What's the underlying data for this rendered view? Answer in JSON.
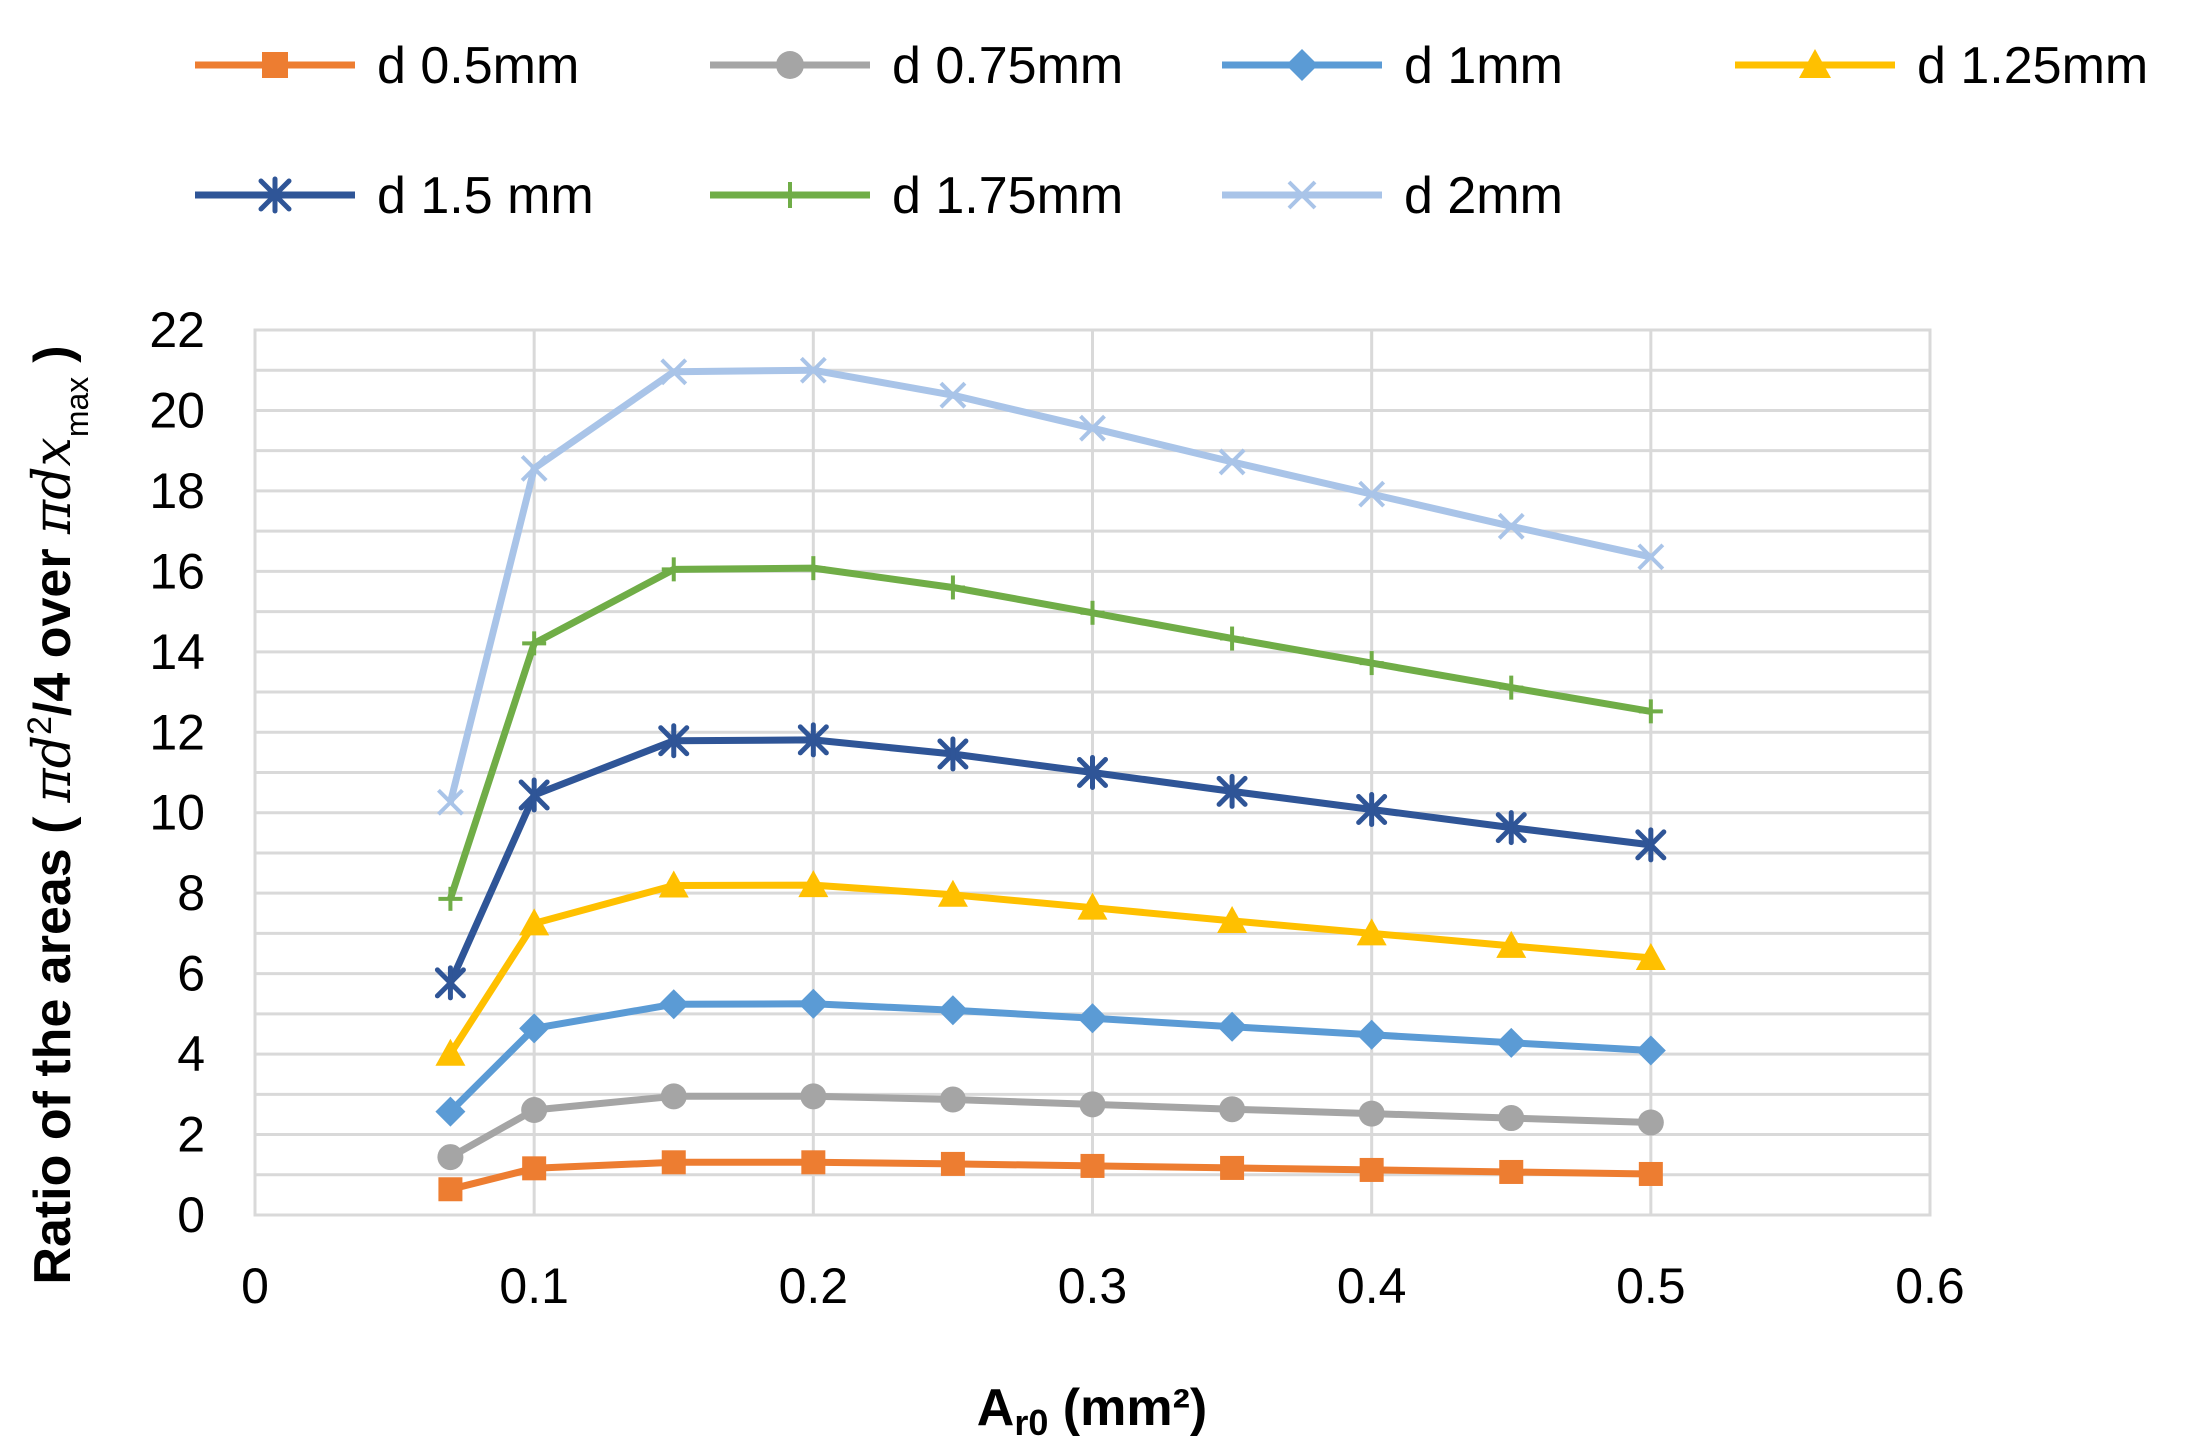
{
  "chart_data": {
    "type": "line",
    "title": "",
    "xlabel": {
      "main": "A",
      "sub": "r0",
      "rest": " (mm²)"
    },
    "ylabel": {
      "prefix": "Ratio of the areas (",
      "pi1": "π",
      "d1": "d",
      "sup2": "2",
      "mid": "/4 over ",
      "pi2": "π",
      "dx": "dx",
      "submax": "max",
      "suffix": ")"
    },
    "xlim": [
      0,
      0.6
    ],
    "ylim": [
      0,
      22
    ],
    "xticks": [
      "0",
      "0.1",
      "0.2",
      "0.3",
      "0.4",
      "0.5",
      "0.6"
    ],
    "yticks": [
      "0",
      "2",
      "4",
      "6",
      "8",
      "10",
      "12",
      "14",
      "16",
      "18",
      "20",
      "22"
    ],
    "grid": true,
    "legend_position": "top",
    "x": [
      0.07,
      0.1,
      0.15,
      0.2,
      0.25,
      0.3,
      0.35,
      0.4,
      0.45,
      0.5
    ],
    "series": [
      {
        "name": "d 0.5mm",
        "color": "#ED7D31",
        "marker": "square",
        "values": [
          0.64,
          1.16,
          1.31,
          1.31,
          1.27,
          1.22,
          1.17,
          1.12,
          1.07,
          1.02
        ]
      },
      {
        "name": "d 0.75mm",
        "color": "#A5A5A5",
        "marker": "circle",
        "values": [
          1.44,
          2.61,
          2.95,
          2.95,
          2.87,
          2.75,
          2.63,
          2.52,
          2.41,
          2.3
        ]
      },
      {
        "name": "d 1mm",
        "color": "#5B9BD5",
        "marker": "diamond",
        "values": [
          2.57,
          4.64,
          5.24,
          5.25,
          5.09,
          4.89,
          4.68,
          4.48,
          4.28,
          4.09
        ]
      },
      {
        "name": "d 1.25mm",
        "color": "#FFC000",
        "marker": "triangle",
        "values": [
          4.01,
          7.25,
          8.19,
          8.2,
          7.96,
          7.64,
          7.31,
          7.0,
          6.69,
          6.39
        ]
      },
      {
        "name": "d 1.5 mm",
        "color": "#2F5597",
        "marker": "star",
        "values": [
          5.77,
          10.44,
          11.79,
          11.81,
          11.46,
          11.0,
          10.53,
          10.08,
          9.63,
          9.2
        ]
      },
      {
        "name": "d 1.75mm",
        "color": "#70AD47",
        "marker": "plus",
        "values": [
          7.86,
          14.21,
          16.05,
          16.08,
          15.6,
          14.97,
          14.33,
          13.72,
          13.11,
          12.52
        ]
      },
      {
        "name": "d 2mm",
        "color": "#A9C4E8",
        "marker": "x",
        "values": [
          10.26,
          18.56,
          20.96,
          21.0,
          20.38,
          19.56,
          18.72,
          17.92,
          17.12,
          16.36
        ]
      }
    ]
  }
}
